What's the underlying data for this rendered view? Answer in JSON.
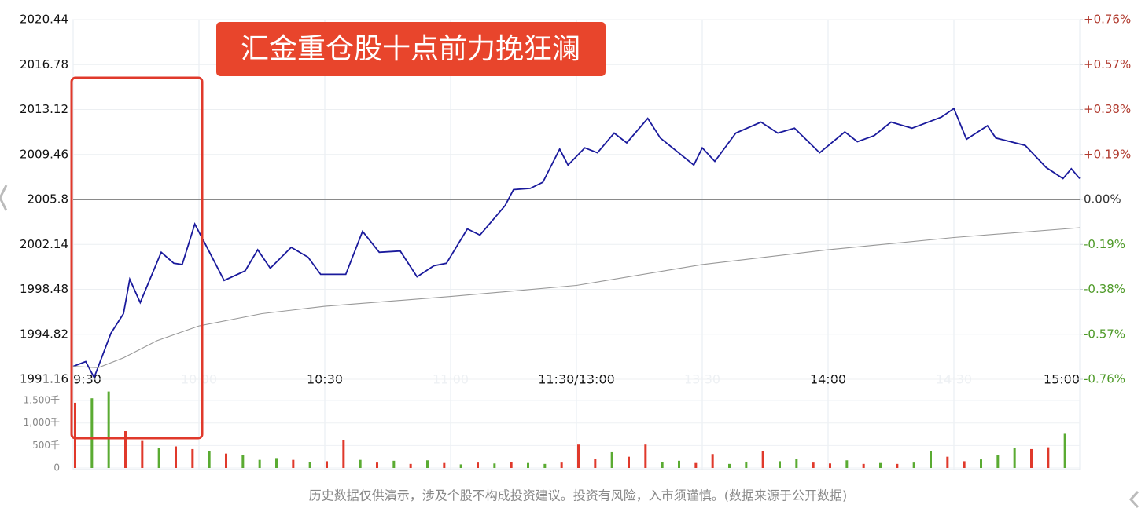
{
  "chart_data": {
    "type": "line",
    "title": "汇金重仓股十点前力挽狂澜",
    "footnote": "历史数据仅供演示，涉及个股不构成投资建议。投资有风险，入市须谨慎。(数据来源于公开数据)",
    "xlim": [
      0,
      240
    ],
    "xticks": [
      {
        "value": 0,
        "label": "9:30"
      },
      {
        "value": 30,
        "label": "10:00"
      },
      {
        "value": 60,
        "label": "10:30"
      },
      {
        "value": 90,
        "label": "11:00"
      },
      {
        "value": 120,
        "label": "11:30/13:00"
      },
      {
        "value": 150,
        "label": "13:30"
      },
      {
        "value": 180,
        "label": "14:00"
      },
      {
        "value": 210,
        "label": "14:30"
      },
      {
        "value": 240,
        "label": "15:00"
      }
    ],
    "xtick_strong": [
      true,
      false,
      true,
      false,
      true,
      false,
      true,
      false,
      true
    ],
    "ylim": [
      1991.16,
      2020.44
    ],
    "yticks": [
      1991.16,
      1994.82,
      1998.48,
      2002.14,
      2005.8,
      2009.46,
      2013.12,
      2016.78,
      2020.44
    ],
    "reference_line": 2005.8,
    "y2lim": [
      -0.76,
      0.76
    ],
    "y2ticks": [
      {
        "value": -0.76,
        "label": "-0.76%"
      },
      {
        "value": -0.57,
        "label": "-0.57%"
      },
      {
        "value": -0.38,
        "label": "-0.38%"
      },
      {
        "value": -0.19,
        "label": "-0.19%"
      },
      {
        "value": 0,
        "label": "0.00%"
      },
      {
        "value": 0.19,
        "label": "+0.19%"
      },
      {
        "value": 0.38,
        "label": "+0.38%"
      },
      {
        "value": 0.57,
        "label": "+0.57%"
      },
      {
        "value": 0.76,
        "label": "+0.76%"
      }
    ],
    "y2_colors": {
      "up": "#b03a2e",
      "flat": "#333333",
      "down": "#4e9a28"
    },
    "grid": true,
    "series": [
      {
        "color": "#1a1a9c",
        "x": [
          0,
          3,
          5,
          9,
          12,
          13.5,
          16,
          21,
          24,
          26,
          29,
          31,
          36,
          41,
          44,
          47,
          52,
          56,
          59,
          65,
          69,
          73,
          78,
          82,
          86,
          89,
          94,
          97,
          103,
          105,
          109,
          112,
          116,
          118,
          122,
          125,
          129,
          132,
          137,
          140,
          148,
          150,
          153,
          158,
          164,
          168,
          172,
          178,
          184,
          187,
          191,
          195,
          200,
          207,
          210,
          213,
          218,
          220,
          227,
          232,
          236,
          238,
          240
        ],
        "values": [
          1992.2,
          1992.6,
          1991.3,
          1994.9,
          1996.5,
          1999.3,
          1997.4,
          2001.5,
          2000.6,
          2000.5,
          2003.8,
          2002.5,
          1999.2,
          1999.98,
          2001.7,
          2000.2,
          2001.9,
          2001.1,
          1999.7,
          1999.7,
          2003.2,
          2001.5,
          2001.6,
          1999.5,
          2000.4,
          2000.6,
          2003.4,
          2002.9,
          2005.3,
          2006.6,
          2006.7,
          2007.2,
          2009.9,
          2008.6,
          2010.0,
          2009.6,
          2011.2,
          2010.4,
          2012.4,
          2010.8,
          2008.6,
          2010.0,
          2008.9,
          2011.2,
          2012.1,
          2011.2,
          2011.6,
          2009.6,
          2011.3,
          2010.5,
          2011.0,
          2012.1,
          2011.6,
          2012.5,
          2013.2,
          2010.7,
          2011.8,
          2010.8,
          2010.2,
          2008.4,
          2007.5,
          2008.3,
          2007.5
        ]
      },
      {
        "color": "#999999",
        "x": [
          0,
          6,
          12,
          20,
          30,
          45,
          60,
          90,
          120,
          150,
          180,
          210,
          240
        ],
        "values": [
          1992.2,
          1992.1,
          1992.9,
          1994.3,
          1995.5,
          1996.5,
          1997.1,
          1997.9,
          1998.8,
          2000.5,
          2001.7,
          2002.7,
          2003.5
        ]
      }
    ],
    "volume": {
      "ylim": [
        0,
        1850
      ],
      "yticks": [
        0,
        {
          "value": 500,
          "label": "500千"
        },
        {
          "value": 1000,
          "label": "1,000千"
        },
        {
          "value": 1500,
          "label": "1,500千"
        }
      ],
      "x": [
        0,
        4,
        8,
        12,
        16,
        20,
        24,
        28,
        32,
        36,
        40,
        44,
        48,
        52,
        56,
        60,
        64,
        68,
        72,
        76,
        80,
        84,
        88,
        92,
        96,
        100,
        104,
        108,
        112,
        116,
        120,
        124,
        128,
        132,
        136,
        140,
        144,
        148,
        152,
        156,
        160,
        164,
        168,
        172,
        176,
        180,
        184,
        188,
        192,
        196,
        200,
        204,
        208,
        212,
        216,
        220,
        224,
        228,
        232,
        236
      ],
      "values": [
        1450,
        1550,
        1700,
        820,
        600,
        450,
        480,
        420,
        380,
        320,
        280,
        180,
        220,
        180,
        130,
        150,
        620,
        180,
        120,
        160,
        90,
        170,
        110,
        80,
        120,
        100,
        130,
        110,
        90,
        120,
        520,
        200,
        350,
        250,
        520,
        130,
        160,
        110,
        310,
        90,
        140,
        380,
        150,
        200,
        120,
        100,
        170,
        90,
        110,
        90,
        120,
        370,
        250,
        150,
        190,
        280,
        450,
        420,
        460,
        760
      ],
      "colors": [
        "#e0392b",
        "#5aab32",
        "#5aab32",
        "#e0392b",
        "#e0392b",
        "#5aab32",
        "#e0392b",
        "#e0392b",
        "#5aab32",
        "#e0392b",
        "#5aab32",
        "#5aab32",
        "#5aab32",
        "#e0392b",
        "#5aab32",
        "#e0392b",
        "#e0392b",
        "#5aab32",
        "#e0392b",
        "#5aab32",
        "#e0392b",
        "#5aab32",
        "#e0392b",
        "#5aab32",
        "#e0392b",
        "#5aab32",
        "#e0392b",
        "#5aab32",
        "#5aab32",
        "#e0392b",
        "#e0392b",
        "#e0392b",
        "#5aab32",
        "#e0392b",
        "#e0392b",
        "#5aab32",
        "#5aab32",
        "#e0392b",
        "#e0392b",
        "#5aab32",
        "#5aab32",
        "#e0392b",
        "#5aab32",
        "#5aab32",
        "#e0392b",
        "#e0392b",
        "#5aab32",
        "#e0392b",
        "#5aab32",
        "#e0392b",
        "#5aab32",
        "#5aab32",
        "#e0392b",
        "#e0392b",
        "#5aab32",
        "#5aab32",
        "#5aab32",
        "#e0392b",
        "#e0392b",
        "#5aab32"
      ]
    }
  }
}
